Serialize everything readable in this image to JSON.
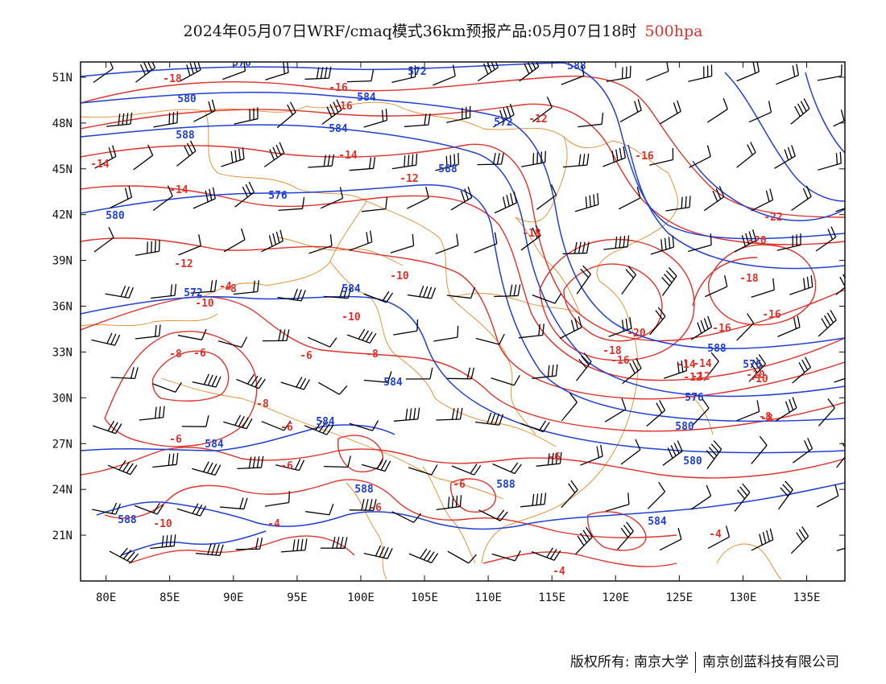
{
  "title": {
    "text": "2024年05月07日WRF/cmaq模式36km预报产品:05月07日18时",
    "level": "500hpa"
  },
  "colors": {
    "height": "#1f3fd6",
    "temperature": "#e0302a",
    "border": "#e08a2a",
    "wind": "#000000"
  },
  "map": {
    "lon_ticks": [
      "80E",
      "85E",
      "90E",
      "95E",
      "100E",
      "105E",
      "110E",
      "115E",
      "120E",
      "125E",
      "130E",
      "135E"
    ],
    "lat_ticks": [
      "51N",
      "48N",
      "45N",
      "42N",
      "39N",
      "36N",
      "33N",
      "30N",
      "27N",
      "24N",
      "21N"
    ],
    "lon_range": [
      78,
      138
    ],
    "lat_range": [
      18,
      52
    ]
  },
  "height_labels": [
    "572",
    "576",
    "580",
    "584",
    "588",
    "576",
    "580",
    "584",
    "584",
    "584",
    "584",
    "588",
    "588",
    "588",
    "588",
    "572",
    "580",
    "584",
    "588",
    "576",
    "580",
    "584",
    "588",
    "572",
    "576"
  ],
  "temp_labels": [
    "-18",
    "-16",
    "-16",
    "-14",
    "-14",
    "-14",
    "-12",
    "-12",
    "-10",
    "-10",
    "-10",
    "-8",
    "-8",
    "-6",
    "-4",
    "-6",
    "-8",
    "-8",
    "-6",
    "-6",
    "-6",
    "-6",
    "-6",
    "-4",
    "-10",
    "-12",
    "-18",
    "-16",
    "-14",
    "-12",
    "-10",
    "-8",
    "-20",
    "-22",
    "-20",
    "-16",
    "-18",
    "-16",
    "-14",
    "-12",
    "-10",
    "-8",
    "-6",
    "-4",
    "-4",
    "-16",
    "-18"
  ],
  "footer": {
    "left": "版权所有: 南京大学",
    "right": "南京创蓝科技有限公司"
  }
}
